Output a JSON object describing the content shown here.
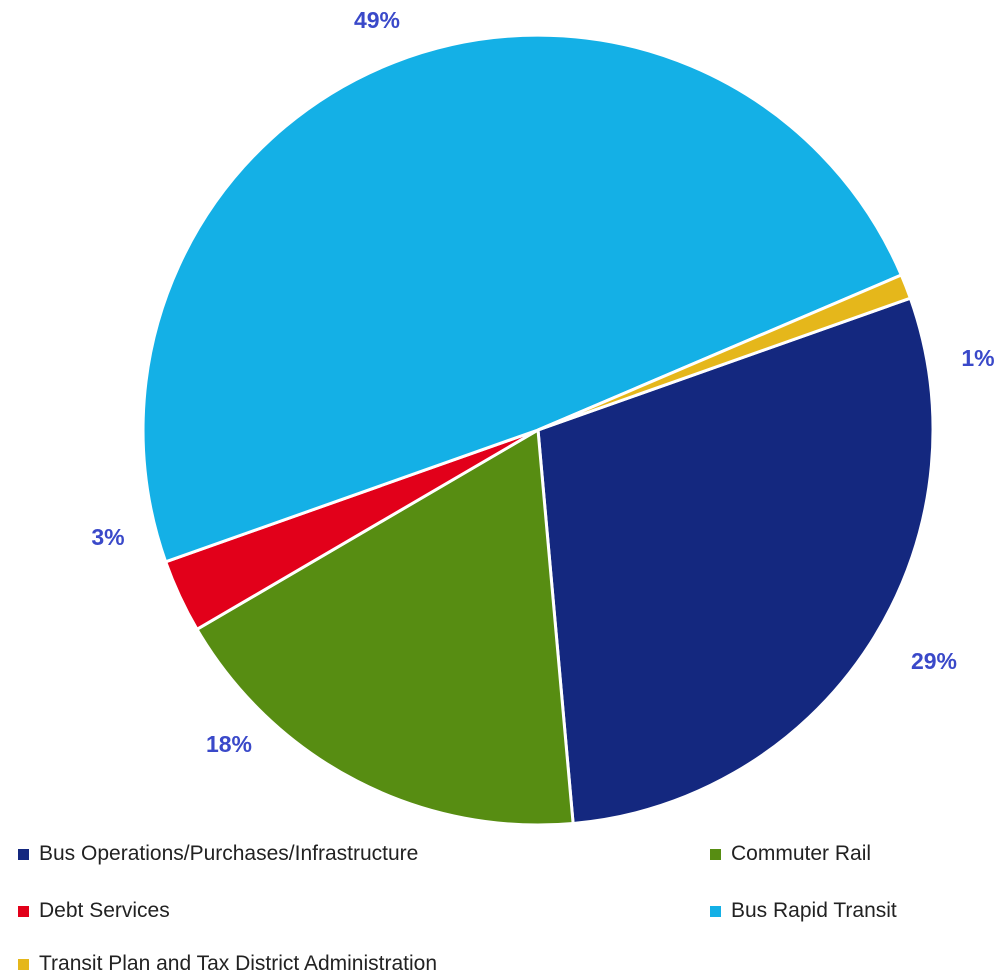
{
  "chart_data": {
    "type": "pie",
    "title": "",
    "label_color": "#3a49c9",
    "start_angle_deg": 70.5,
    "slices": [
      {
        "name": "Bus Operations/Purchases/Infrastructure",
        "value": 29,
        "label": "29%",
        "color": "#14287f"
      },
      {
        "name": "Commuter Rail",
        "value": 18,
        "label": "18%",
        "color": "#578d12"
      },
      {
        "name": "Debt Services",
        "value": 3,
        "label": "3%",
        "color": "#e2001a"
      },
      {
        "name": "Bus Rapid Transit",
        "value": 49,
        "label": "49%",
        "color": "#14b0e6"
      },
      {
        "name": "Transit Plan and Tax District Administration",
        "value": 1,
        "label": "1%",
        "color": "#e5b71b"
      }
    ],
    "legend": {
      "placement": "bottom",
      "entries": [
        "Bus Operations/Purchases/Infrastructure",
        "Commuter Rail",
        "Debt Services",
        "Bus Rapid Transit",
        "Transit Plan and Tax District Administration"
      ]
    }
  }
}
